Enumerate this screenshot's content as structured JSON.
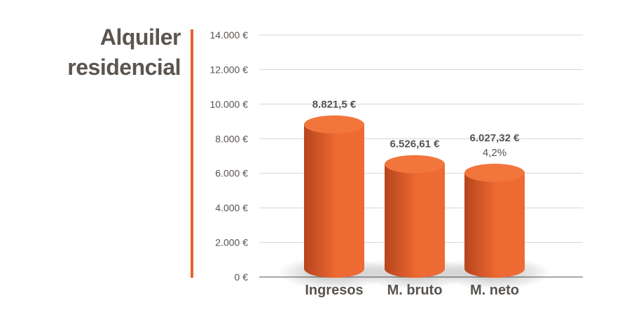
{
  "title": {
    "line1": "Alquiler",
    "line2": "residencial"
  },
  "colors": {
    "accent": "#e8632d",
    "bar_light": "#ee6a33",
    "bar_dark": "#b6451d",
    "bar_top": "#f2763c",
    "grid": "#d4d4d4",
    "axis": "#8c8c8c",
    "text": "#58534f"
  },
  "chart_data": {
    "type": "bar",
    "style": "3d-cylinder",
    "categories": [
      "Ingresos",
      "M. bruto",
      "M. neto"
    ],
    "values": [
      8821.5,
      6526.61,
      6027.32
    ],
    "data_labels": [
      "8.821,5 €",
      "6.526,61 €",
      "6.027,32 €"
    ],
    "extra_labels": [
      "",
      "",
      "4,2%"
    ],
    "y_ticks": [
      0,
      2000,
      4000,
      6000,
      8000,
      10000,
      12000,
      14000
    ],
    "y_tick_labels": [
      "0 €",
      "2.000 €",
      "4.000 €",
      "6.000 €",
      "8.000 €",
      "10.000 €",
      "12.000 €",
      "14.000 €"
    ],
    "ylim": [
      0,
      14000
    ],
    "grid": true,
    "legend": false
  }
}
